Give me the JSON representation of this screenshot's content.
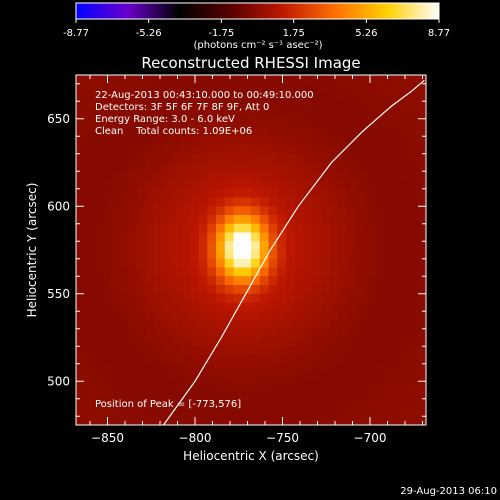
{
  "chart_data": {
    "type": "heatmap",
    "title": "Reconstructed RHESSI Image",
    "xlabel": "Heliocentric X (arcsec)",
    "ylabel": "Heliocentric Y (arcsec)",
    "xlim": [
      -868,
      -668
    ],
    "ylim": [
      475,
      675
    ],
    "x_ticks": [
      -850,
      -800,
      -750,
      -700
    ],
    "y_ticks": [
      500,
      550,
      600,
      650
    ],
    "colorbar": {
      "min": -8.77,
      "max": 8.77,
      "tick_values": [
        -8.77,
        -5.26,
        -1.75,
        1.75,
        5.26,
        8.77
      ],
      "tick_labels": [
        "-8.77",
        "-5.26",
        "-1.75",
        "1.75",
        "5.26",
        "8.77"
      ],
      "units_label": "(photons cm⁻² s⁻¹ asec⁻²)",
      "colormap_stops": [
        "#0000ff",
        "#6a00cc",
        "#000000",
        "#5a0000",
        "#c01800",
        "#ff7000",
        "#ffd000",
        "#ffffff"
      ]
    },
    "source": {
      "peak_x": -773,
      "peak_y": 576,
      "peak_value": 8.77,
      "sigma_x": 10,
      "sigma_y": 13,
      "halo_sigma": 45,
      "halo_value": 1.2
    },
    "limb_curve": {
      "x": [
        -818,
        -800,
        -785,
        -771,
        -757,
        -741,
        -722,
        -704,
        -688,
        -676,
        -669
      ],
      "y": [
        475,
        500,
        525,
        550,
        575,
        600,
        625,
        643,
        657,
        666,
        672
      ]
    },
    "info_lines": [
      "22-Aug-2013 00:43:10.000 to 00:49:10.000",
      "Detectors: 3F 5F 6F 7F 8F 9F, Att 0",
      "Energy Range: 3.0 - 6.0 keV",
      "Clean    Total counts: 1.09E+06"
    ],
    "peak_label": "Position of Peak = [-773,576]",
    "timestamp": "29-Aug-2013 06:10"
  }
}
